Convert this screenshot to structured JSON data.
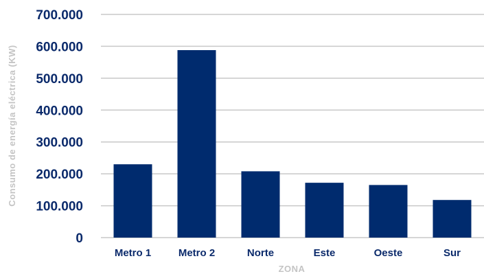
{
  "chart_data": {
    "type": "bar",
    "title": "",
    "xlabel": "ZONA",
    "ylabel": "Consumo de energía eléctrica (KW)",
    "categories": [
      "Metro 1",
      "Metro 2",
      "Norte",
      "Este",
      "Oeste",
      "Sur"
    ],
    "values": [
      230000,
      588000,
      208000,
      172000,
      165000,
      118000
    ],
    "ylim": [
      0,
      700000
    ],
    "yticks": [
      0,
      100000,
      200000,
      300000,
      400000,
      500000,
      600000,
      700000
    ],
    "ytick_labels": [
      "0",
      "100.000",
      "200.000",
      "300.000",
      "400.000",
      "500.000",
      "600.000",
      "700.000"
    ],
    "grid": true,
    "bar_color": "#002b6e"
  }
}
